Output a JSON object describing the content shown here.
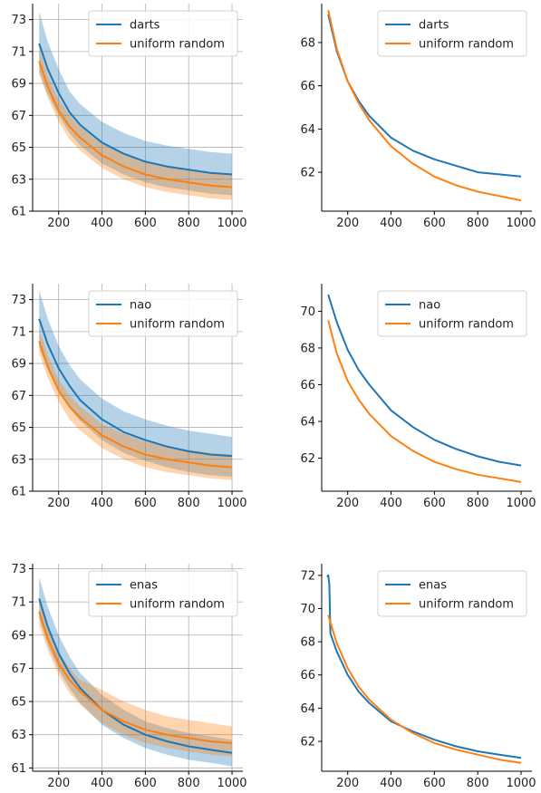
{
  "chart_data": [
    {
      "type": "line",
      "grid": true,
      "xlim": [
        80,
        1050
      ],
      "ylim": [
        61,
        74
      ],
      "x_ticks": [
        200,
        400,
        600,
        800,
        1000
      ],
      "y_ticks": [
        61,
        63,
        65,
        67,
        69,
        71,
        73
      ],
      "legend": {
        "position": "top-right",
        "entries": [
          "darts",
          "uniform random"
        ]
      },
      "series": [
        {
          "name": "darts",
          "color": "#1f77b4",
          "x": [
            110,
            150,
            200,
            250,
            300,
            400,
            500,
            600,
            700,
            800,
            900,
            1000
          ],
          "y": [
            71.5,
            69.9,
            68.4,
            67.2,
            66.4,
            65.3,
            64.6,
            64.1,
            63.8,
            63.6,
            63.4,
            63.3
          ],
          "band_low": [
            69.7,
            68.3,
            67.0,
            65.9,
            65.1,
            64.0,
            63.3,
            62.8,
            62.5,
            62.3,
            62.1,
            62.0
          ],
          "band_high": [
            73.5,
            71.6,
            69.9,
            68.5,
            67.7,
            66.6,
            65.9,
            65.4,
            65.1,
            64.9,
            64.7,
            64.6
          ]
        },
        {
          "name": "uniform random",
          "color": "#ff7f0e",
          "x": [
            110,
            150,
            200,
            250,
            300,
            400,
            500,
            600,
            700,
            800,
            900,
            1000
          ],
          "y": [
            70.4,
            68.8,
            67.3,
            66.3,
            65.6,
            64.5,
            63.8,
            63.3,
            63.0,
            62.8,
            62.6,
            62.5
          ],
          "band_low": [
            69.6,
            68.1,
            66.6,
            65.5,
            64.8,
            63.7,
            63.0,
            62.5,
            62.2,
            62.0,
            61.8,
            61.7
          ],
          "band_high": [
            71.2,
            69.5,
            68.0,
            67.0,
            66.3,
            65.2,
            64.6,
            64.1,
            63.8,
            63.6,
            63.4,
            63.3
          ]
        }
      ]
    },
    {
      "type": "line",
      "grid": false,
      "xlim": [
        80,
        1050
      ],
      "ylim": [
        60.2,
        69.8
      ],
      "x_ticks": [
        200,
        400,
        600,
        800,
        1000
      ],
      "y_ticks": [
        62,
        64,
        66,
        68
      ],
      "legend": {
        "position": "top-right",
        "entries": [
          "darts",
          "uniform random"
        ]
      },
      "series": [
        {
          "name": "darts",
          "color": "#1f77b4",
          "x": [
            110,
            150,
            200,
            250,
            300,
            400,
            500,
            600,
            700,
            800,
            900,
            1000
          ],
          "y": [
            69.3,
            67.6,
            66.2,
            65.3,
            64.6,
            63.6,
            63.0,
            62.6,
            62.3,
            62.0,
            61.9,
            61.8
          ]
        },
        {
          "name": "uniform random",
          "color": "#ff7f0e",
          "x": [
            110,
            150,
            200,
            250,
            300,
            400,
            500,
            600,
            700,
            800,
            900,
            1000
          ],
          "y": [
            69.5,
            67.7,
            66.2,
            65.2,
            64.4,
            63.2,
            62.4,
            61.8,
            61.4,
            61.1,
            60.9,
            60.7
          ]
        }
      ]
    },
    {
      "type": "line",
      "grid": true,
      "xlim": [
        80,
        1050
      ],
      "ylim": [
        61,
        74
      ],
      "x_ticks": [
        200,
        400,
        600,
        800,
        1000
      ],
      "y_ticks": [
        61,
        63,
        65,
        67,
        69,
        71,
        73
      ],
      "legend": {
        "position": "top-right",
        "entries": [
          "nao",
          "uniform random"
        ]
      },
      "series": [
        {
          "name": "nao",
          "color": "#1f77b4",
          "x": [
            110,
            150,
            200,
            250,
            300,
            400,
            500,
            600,
            700,
            800,
            900,
            1000
          ],
          "y": [
            71.8,
            70.2,
            68.7,
            67.6,
            66.7,
            65.5,
            64.7,
            64.2,
            63.8,
            63.5,
            63.3,
            63.2
          ],
          "band_low": [
            70.0,
            68.6,
            67.3,
            66.2,
            65.4,
            64.2,
            63.4,
            62.9,
            62.5,
            62.2,
            62.0,
            61.9
          ],
          "band_high": [
            73.6,
            71.8,
            70.1,
            68.9,
            68.0,
            66.8,
            66.0,
            65.5,
            65.1,
            64.8,
            64.6,
            64.4
          ]
        },
        {
          "name": "uniform random",
          "color": "#ff7f0e",
          "x": [
            110,
            150,
            200,
            250,
            300,
            400,
            500,
            600,
            700,
            800,
            900,
            1000
          ],
          "y": [
            70.4,
            68.8,
            67.3,
            66.3,
            65.6,
            64.5,
            63.8,
            63.3,
            63.0,
            62.8,
            62.6,
            62.5
          ],
          "band_low": [
            69.6,
            68.1,
            66.6,
            65.5,
            64.8,
            63.7,
            63.0,
            62.5,
            62.2,
            62.0,
            61.8,
            61.7
          ],
          "band_high": [
            71.2,
            69.5,
            68.0,
            67.0,
            66.3,
            65.2,
            64.6,
            64.1,
            63.8,
            63.6,
            63.4,
            63.3
          ]
        }
      ]
    },
    {
      "type": "line",
      "grid": false,
      "xlim": [
        80,
        1050
      ],
      "ylim": [
        60.2,
        71.5
      ],
      "x_ticks": [
        200,
        400,
        600,
        800,
        1000
      ],
      "y_ticks": [
        62,
        64,
        66,
        68,
        70
      ],
      "legend": {
        "position": "top-right",
        "entries": [
          "nao",
          "uniform random"
        ]
      },
      "series": [
        {
          "name": "nao",
          "color": "#1f77b4",
          "x": [
            110,
            150,
            200,
            250,
            300,
            400,
            500,
            600,
            700,
            800,
            900,
            1000
          ],
          "y": [
            70.9,
            69.4,
            67.9,
            66.8,
            66.0,
            64.6,
            63.7,
            63.0,
            62.5,
            62.1,
            61.8,
            61.6
          ],
          "band_low": [
            70.9,
            69.4,
            67.9,
            66.8,
            66.0,
            64.6,
            63.7,
            63.0,
            62.5,
            62.1,
            61.8,
            61.6
          ],
          "band_high": [
            70.9,
            69.4,
            67.9,
            66.8,
            66.0,
            64.6,
            63.7,
            63.0,
            62.5,
            62.1,
            61.8,
            61.6
          ]
        },
        {
          "name": "uniform random",
          "color": "#ff7f0e",
          "x": [
            110,
            150,
            200,
            250,
            300,
            400,
            500,
            600,
            700,
            800,
            900,
            1000
          ],
          "y": [
            69.5,
            67.7,
            66.2,
            65.2,
            64.4,
            63.2,
            62.4,
            61.8,
            61.4,
            61.1,
            60.9,
            60.7
          ]
        }
      ]
    },
    {
      "type": "line",
      "grid": true,
      "xlim": [
        80,
        1050
      ],
      "ylim": [
        60.8,
        73.3
      ],
      "x_ticks": [
        200,
        400,
        600,
        800,
        1000
      ],
      "y_ticks": [
        61,
        63,
        65,
        67,
        69,
        71,
        73
      ],
      "legend": {
        "position": "top-right",
        "entries": [
          "enas",
          "uniform random"
        ]
      },
      "series": [
        {
          "name": "enas",
          "color": "#1f77b4",
          "x": [
            110,
            150,
            200,
            250,
            300,
            400,
            500,
            600,
            700,
            800,
            900,
            1000
          ],
          "y": [
            71.2,
            69.5,
            67.9,
            66.7,
            65.8,
            64.5,
            63.6,
            63.0,
            62.6,
            62.3,
            62.1,
            61.9
          ],
          "band_low": [
            70.0,
            68.4,
            66.9,
            65.8,
            64.9,
            63.6,
            62.8,
            62.2,
            61.8,
            61.5,
            61.3,
            61.1
          ],
          "band_high": [
            72.5,
            70.7,
            69.0,
            67.7,
            66.7,
            65.4,
            64.5,
            63.8,
            63.4,
            63.1,
            62.9,
            62.7
          ]
        },
        {
          "name": "uniform random",
          "color": "#ff7f0e",
          "x": [
            110,
            150,
            200,
            250,
            300,
            400,
            500,
            600,
            700,
            800,
            900,
            1000
          ],
          "y": [
            70.4,
            68.8,
            67.3,
            66.3,
            65.6,
            64.5,
            63.8,
            63.3,
            63.0,
            62.8,
            62.6,
            62.5
          ],
          "band_low": [
            69.6,
            68.1,
            66.6,
            65.5,
            64.8,
            63.7,
            63.0,
            62.5,
            62.2,
            62.0,
            61.8,
            61.7
          ],
          "band_high": [
            71.2,
            69.5,
            68.0,
            67.0,
            66.3,
            65.7,
            65.0,
            64.5,
            64.1,
            63.9,
            63.7,
            63.5
          ]
        }
      ]
    },
    {
      "type": "line",
      "grid": false,
      "xlim": [
        80,
        1050
      ],
      "ylim": [
        60.2,
        72.7
      ],
      "x_ticks": [
        200,
        400,
        600,
        800,
        1000
      ],
      "y_ticks": [
        62,
        64,
        66,
        68,
        70,
        72
      ],
      "legend": {
        "position": "top-right",
        "entries": [
          "enas",
          "uniform random"
        ]
      },
      "series": [
        {
          "name": "enas",
          "color": "#1f77b4",
          "x": [
            105,
            110,
            115,
            120,
            150,
            200,
            250,
            300,
            400,
            500,
            600,
            700,
            800,
            900,
            1000
          ],
          "y": [
            71.9,
            72.0,
            71.5,
            68.5,
            67.4,
            66.0,
            65.0,
            64.3,
            63.2,
            62.6,
            62.1,
            61.7,
            61.4,
            61.2,
            61.0
          ]
        },
        {
          "name": "uniform random",
          "color": "#ff7f0e",
          "x": [
            110,
            150,
            200,
            250,
            300,
            400,
            500,
            600,
            700,
            800,
            900,
            1000
          ],
          "y": [
            69.6,
            67.9,
            66.4,
            65.3,
            64.5,
            63.3,
            62.5,
            61.9,
            61.5,
            61.2,
            60.9,
            60.7
          ]
        }
      ]
    }
  ]
}
